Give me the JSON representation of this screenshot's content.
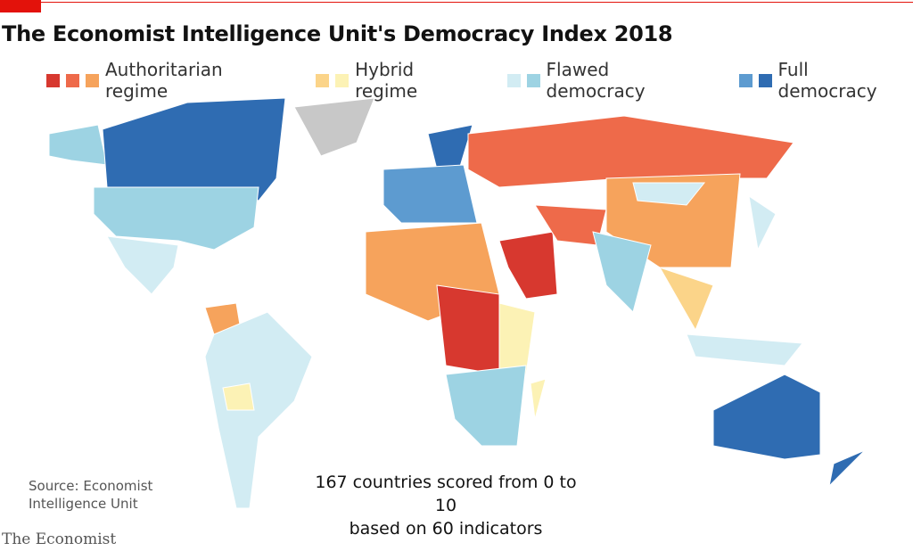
{
  "header": {
    "title": "The Economist Intelligence Unit's Democracy Index 2018"
  },
  "legend": [
    {
      "label": "Authoritarian regime",
      "colors": [
        "#d7382f",
        "#ee6a4a",
        "#f6a35c"
      ]
    },
    {
      "label": "Hybrid regime",
      "colors": [
        "#fbd489",
        "#fcf2b5"
      ]
    },
    {
      "label": "Flawed democracy",
      "colors": [
        "#d2ecf3",
        "#9dd3e3"
      ]
    },
    {
      "label": "Full democracy",
      "colors": [
        "#5d9bd0",
        "#2f6cb2"
      ]
    }
  ],
  "note": [
    "167 countries scored from 0 to 10",
    "based on 60 indicators"
  ],
  "source": [
    "Source: Economist",
    "Intelligence Unit"
  ],
  "brand": "The Economist"
}
